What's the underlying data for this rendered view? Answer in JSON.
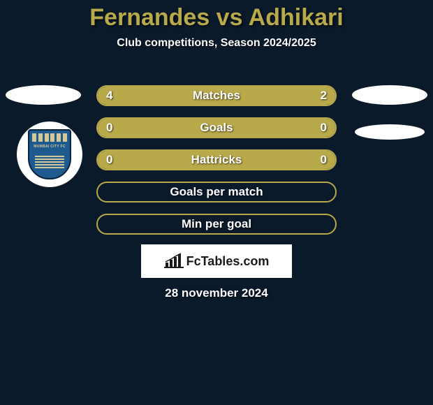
{
  "title": "Fernandes vs Adhikari",
  "subtitle": "Club competitions, Season 2024/2025",
  "colors": {
    "background": "#0a1a2a",
    "accent": "#b8a94a",
    "text": "#ffffff",
    "logo_bg": "#ffffff",
    "logo_text": "#1a1a1a",
    "crest_primary": "#1e5a8e",
    "crest_secondary": "#d4c896"
  },
  "typography": {
    "title_fontsize": 34,
    "title_weight": 800,
    "subtitle_fontsize": 16,
    "stat_label_fontsize": 17,
    "date_fontsize": 17
  },
  "club_crest_text": "MUMBAI CITY FC",
  "stat_rows": [
    {
      "label": "Matches",
      "left_val": "4",
      "right_val": "2",
      "left_fill_pct": 66.7,
      "right_fill_pct": 33.3,
      "show_vals": true
    },
    {
      "label": "Goals",
      "left_val": "0",
      "right_val": "0",
      "left_fill_pct": 50,
      "right_fill_pct": 50,
      "show_vals": true
    },
    {
      "label": "Hattricks",
      "left_val": "0",
      "right_val": "0",
      "left_fill_pct": 50,
      "right_fill_pct": 50,
      "show_vals": true
    },
    {
      "label": "Goals per match",
      "left_val": "",
      "right_val": "",
      "left_fill_pct": 0,
      "right_fill_pct": 0,
      "show_vals": false
    },
    {
      "label": "Min per goal",
      "left_val": "",
      "right_val": "",
      "left_fill_pct": 0,
      "right_fill_pct": 0,
      "show_vals": false
    }
  ],
  "footer_brand": "FcTables.com",
  "date": "28 november 2024"
}
